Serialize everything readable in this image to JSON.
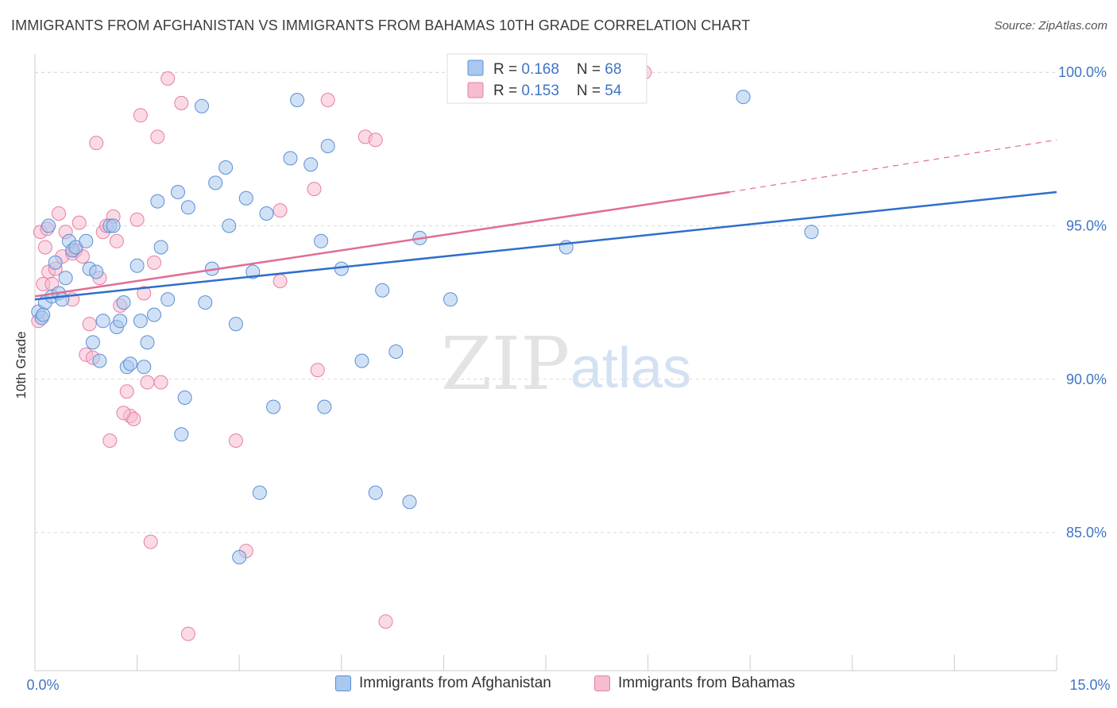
{
  "title": "IMMIGRANTS FROM AFGHANISTAN VS IMMIGRANTS FROM BAHAMAS 10TH GRADE CORRELATION CHART",
  "source": "Source: ZipAtlas.com",
  "watermark": {
    "zip": "ZIP",
    "atlas": "atlas"
  },
  "colors": {
    "afghanistan_fill": "#a9c8ee",
    "afghanistan_stroke": "#5b8fd6",
    "afghanistan_line": "#2f6ecb",
    "bahamas_fill": "#f6bcd0",
    "bahamas_stroke": "#e87ea3",
    "bahamas_line": "#e06d96",
    "axis_value": "#3f74c4",
    "grid": "#d9d9d9"
  },
  "legend_top": {
    "rows": [
      {
        "r_label": "R = ",
        "r_value": "0.168",
        "n_label": "N = ",
        "n_value": "68"
      },
      {
        "r_label": "R = ",
        "r_value": "0.153",
        "n_label": "N = ",
        "n_value": "54"
      }
    ]
  },
  "legend_bottom": {
    "afghanistan": "Immigrants from Afghanistan",
    "bahamas": "Immigrants from Bahamas"
  },
  "chart_data": {
    "type": "scatter",
    "title": "IMMIGRANTS FROM AFGHANISTAN VS IMMIGRANTS FROM BAHAMAS 10TH GRADE CORRELATION CHART",
    "xlabel": "",
    "ylabel": "10th Grade",
    "xlim": [
      0,
      15
    ],
    "ylim": [
      80.5,
      100.6
    ],
    "x_tick_labels": [
      "0.0%",
      "15.0%"
    ],
    "y_ticks": [
      85,
      90,
      95,
      100
    ],
    "y_tick_labels": [
      "85.0%",
      "90.0%",
      "95.0%",
      "100.0%"
    ],
    "grid": true,
    "legend_position": "top-center",
    "series": [
      {
        "name": "Immigrants from Afghanistan",
        "r": 0.168,
        "n": 68,
        "trend": {
          "x0": 0,
          "y0": 92.6,
          "x1": 15,
          "y1": 96.1
        },
        "points": [
          [
            0.05,
            92.2
          ],
          [
            0.1,
            92.0
          ],
          [
            0.15,
            92.5
          ],
          [
            0.2,
            95.0
          ],
          [
            0.25,
            92.7
          ],
          [
            0.3,
            93.8
          ],
          [
            0.35,
            92.8
          ],
          [
            0.45,
            93.3
          ],
          [
            0.5,
            94.5
          ],
          [
            0.55,
            94.2
          ],
          [
            0.6,
            94.3
          ],
          [
            0.75,
            94.5
          ],
          [
            0.8,
            93.6
          ],
          [
            0.85,
            91.2
          ],
          [
            0.9,
            93.5
          ],
          [
            0.95,
            90.6
          ],
          [
            1.0,
            91.9
          ],
          [
            1.1,
            95.0
          ],
          [
            1.15,
            95.0
          ],
          [
            1.2,
            91.7
          ],
          [
            1.25,
            91.9
          ],
          [
            1.3,
            92.5
          ],
          [
            1.35,
            90.4
          ],
          [
            1.4,
            90.5
          ],
          [
            1.5,
            93.7
          ],
          [
            1.55,
            91.9
          ],
          [
            1.6,
            90.4
          ],
          [
            1.65,
            91.2
          ],
          [
            1.75,
            92.1
          ],
          [
            1.8,
            95.8
          ],
          [
            1.85,
            94.3
          ],
          [
            1.95,
            92.6
          ],
          [
            2.1,
            96.1
          ],
          [
            2.15,
            88.2
          ],
          [
            2.2,
            89.4
          ],
          [
            2.25,
            95.6
          ],
          [
            2.45,
            98.9
          ],
          [
            2.5,
            92.5
          ],
          [
            2.6,
            93.6
          ],
          [
            2.65,
            96.4
          ],
          [
            2.8,
            96.9
          ],
          [
            2.85,
            95.0
          ],
          [
            2.95,
            91.8
          ],
          [
            3.0,
            84.2
          ],
          [
            3.1,
            95.9
          ],
          [
            3.2,
            93.5
          ],
          [
            3.3,
            86.3
          ],
          [
            3.4,
            95.4
          ],
          [
            3.5,
            89.1
          ],
          [
            3.75,
            97.2
          ],
          [
            3.85,
            99.1
          ],
          [
            4.05,
            97.0
          ],
          [
            4.2,
            94.5
          ],
          [
            4.25,
            89.1
          ],
          [
            4.3,
            97.6
          ],
          [
            4.5,
            93.6
          ],
          [
            4.8,
            90.6
          ],
          [
            5.0,
            86.3
          ],
          [
            5.1,
            92.9
          ],
          [
            5.3,
            90.9
          ],
          [
            5.5,
            86.0
          ],
          [
            5.65,
            94.6
          ],
          [
            6.1,
            92.6
          ],
          [
            7.8,
            94.3
          ],
          [
            10.4,
            99.2
          ],
          [
            11.4,
            94.8
          ],
          [
            0.12,
            92.1
          ],
          [
            0.4,
            92.6
          ]
        ]
      },
      {
        "name": "Immigrants from Bahamas",
        "r": 0.153,
        "n": 54,
        "trend": {
          "x0": 0,
          "y0": 92.7,
          "x1": 10.2,
          "y1": 96.1
        },
        "trend_extension": {
          "x0": 10.2,
          "y0": 96.1,
          "x1": 15,
          "y1": 97.8
        },
        "points": [
          [
            0.05,
            91.9
          ],
          [
            0.08,
            94.8
          ],
          [
            0.12,
            93.1
          ],
          [
            0.15,
            94.3
          ],
          [
            0.2,
            93.5
          ],
          [
            0.25,
            93.1
          ],
          [
            0.3,
            93.6
          ],
          [
            0.35,
            95.4
          ],
          [
            0.4,
            94.0
          ],
          [
            0.45,
            94.8
          ],
          [
            0.55,
            94.1
          ],
          [
            0.6,
            94.2
          ],
          [
            0.65,
            95.1
          ],
          [
            0.7,
            94.0
          ],
          [
            0.75,
            90.8
          ],
          [
            0.8,
            91.8
          ],
          [
            0.85,
            90.7
          ],
          [
            0.9,
            97.7
          ],
          [
            0.95,
            93.3
          ],
          [
            1.0,
            94.8
          ],
          [
            1.05,
            95.0
          ],
          [
            1.1,
            88.0
          ],
          [
            1.15,
            95.3
          ],
          [
            1.2,
            94.5
          ],
          [
            1.25,
            92.4
          ],
          [
            1.35,
            89.6
          ],
          [
            1.4,
            88.8
          ],
          [
            1.45,
            88.7
          ],
          [
            1.5,
            95.2
          ],
          [
            1.55,
            98.6
          ],
          [
            1.6,
            92.8
          ],
          [
            1.65,
            89.9
          ],
          [
            1.7,
            84.7
          ],
          [
            1.75,
            93.8
          ],
          [
            1.8,
            97.9
          ],
          [
            1.85,
            89.9
          ],
          [
            1.95,
            99.8
          ],
          [
            2.15,
            99.0
          ],
          [
            2.25,
            81.7
          ],
          [
            2.95,
            88.0
          ],
          [
            3.1,
            84.4
          ],
          [
            3.6,
            95.5
          ],
          [
            3.6,
            93.2
          ],
          [
            4.1,
            96.2
          ],
          [
            4.15,
            90.3
          ],
          [
            4.3,
            99.1
          ],
          [
            4.85,
            97.9
          ],
          [
            5.0,
            97.8
          ],
          [
            5.15,
            82.1
          ],
          [
            6.95,
            99.9
          ],
          [
            8.95,
            100.0
          ],
          [
            0.55,
            92.6
          ],
          [
            1.3,
            88.9
          ],
          [
            0.18,
            94.9
          ]
        ]
      }
    ]
  }
}
